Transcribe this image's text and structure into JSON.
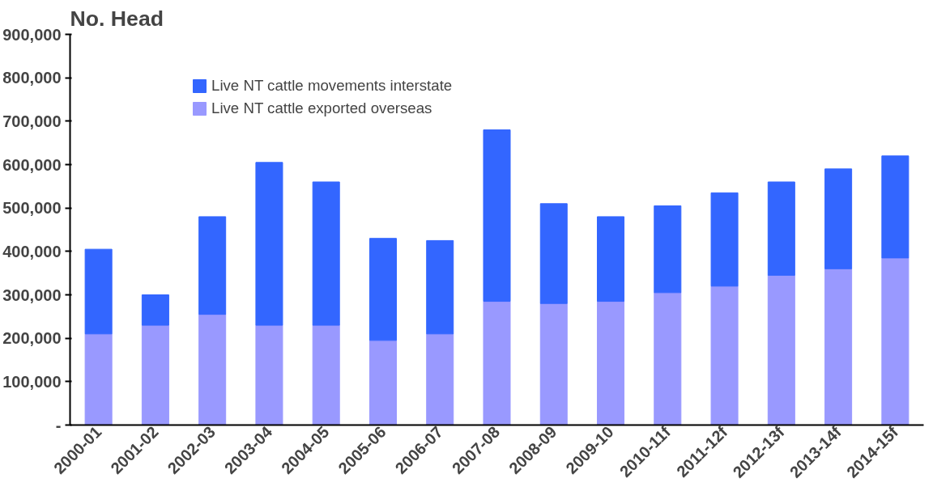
{
  "chart_data": {
    "type": "bar",
    "stacked": true,
    "ylabel": "No. Head",
    "categories": [
      "2000-01",
      "2001-02",
      "2002-03",
      "2003-04",
      "2004-05",
      "2005-06",
      "2006-07",
      "2007-08",
      "2008-09",
      "2009-10",
      "2010-11f",
      "2011-12f",
      "2012-13f",
      "2013-14f",
      "2014-15f"
    ],
    "series": [
      {
        "name": "Live NT cattle exported overseas",
        "color": "#9999ff",
        "values": [
          210000,
          230000,
          255000,
          230000,
          230000,
          195000,
          210000,
          285000,
          280000,
          285000,
          305000,
          320000,
          345000,
          360000,
          385000
        ]
      },
      {
        "name": "Live NT cattle movements interstate",
        "color": "#3366ff",
        "values": [
          195000,
          70000,
          225000,
          375000,
          330000,
          235000,
          215000,
          395000,
          230000,
          195000,
          200000,
          215000,
          215000,
          230000,
          235000
        ]
      }
    ],
    "ylim": [
      0,
      900000
    ],
    "yticks": [
      {
        "value": 0,
        "label": "-"
      },
      {
        "value": 100000,
        "label": "100,000"
      },
      {
        "value": 200000,
        "label": "200,000"
      },
      {
        "value": 300000,
        "label": "300,000"
      },
      {
        "value": 400000,
        "label": "400,000"
      },
      {
        "value": 500000,
        "label": "500,000"
      },
      {
        "value": 600000,
        "label": "600,000"
      },
      {
        "value": 700000,
        "label": "700,000"
      },
      {
        "value": 800000,
        "label": "800,000"
      },
      {
        "value": 900000,
        "label": "900,000"
      }
    ],
    "grid": false,
    "legend": "top left"
  }
}
